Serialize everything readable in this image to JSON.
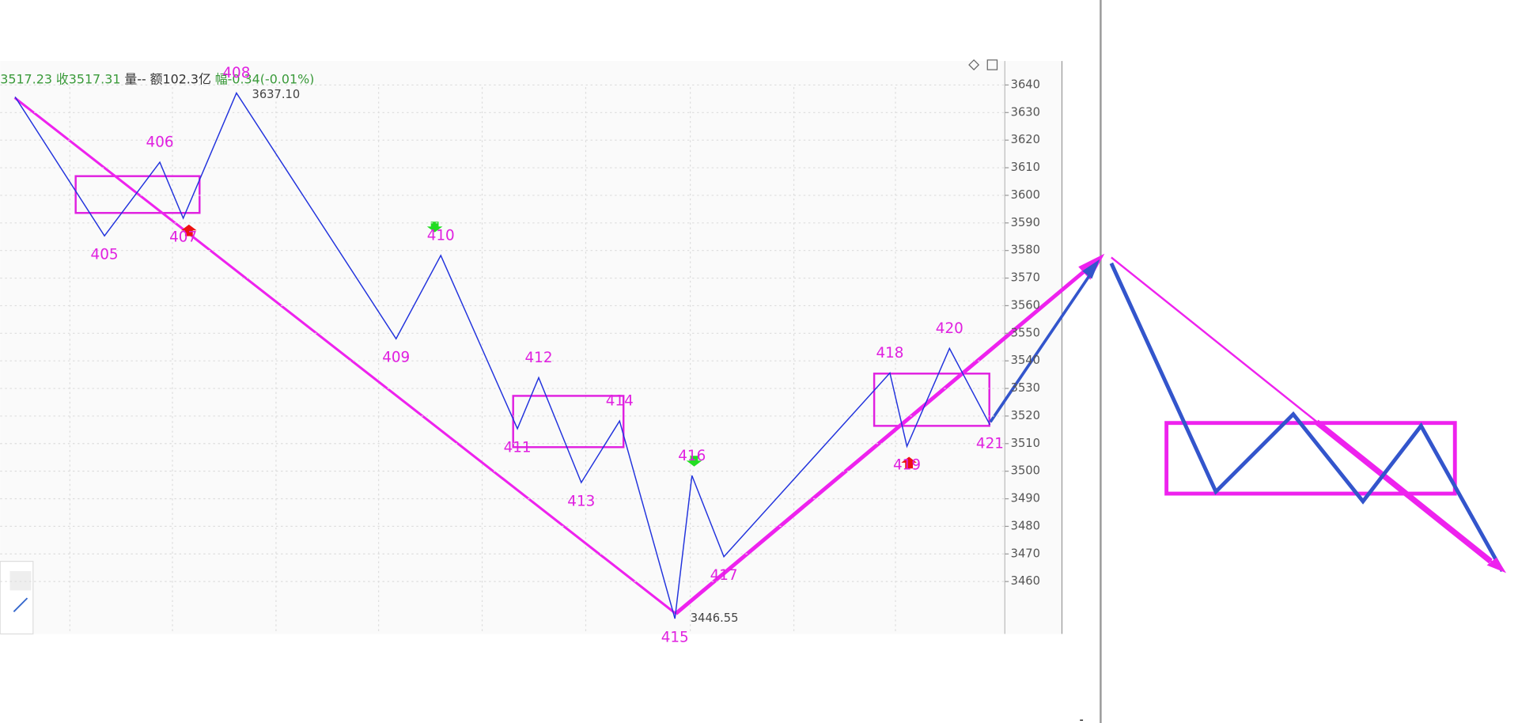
{
  "chart_data": {
    "type": "line",
    "header": [
      "3517.23",
      "收3517.31",
      "量--",
      "额102.3亿",
      "幅-0.34(-0.01%)"
    ],
    "x": [
      7,
      49,
      75,
      86,
      111,
      186,
      207,
      243,
      253,
      273,
      291,
      317,
      325,
      340,
      418,
      426,
      446,
      465
    ],
    "series": [
      {
        "color": "#2233dd",
        "values": [
          3635.7,
          3585.3,
          3612,
          3591.7,
          3637.1,
          3548,
          3578.2,
          3515.4,
          3533.9,
          3495.9,
          3518.2,
          3446.55,
          3498.4,
          3469,
          3535.6,
          3509,
          3544.5,
          3516.8
        ],
        "value_labels": [
          null,
          null,
          null,
          null,
          "3637.10",
          null,
          null,
          null,
          null,
          null,
          null,
          "3446.55",
          null,
          null,
          null,
          null,
          null,
          null
        ],
        "point_labels": [
          null,
          "405",
          "406",
          "407",
          "408",
          "409",
          "410",
          "411",
          "412",
          "413",
          "414",
          "415",
          "416",
          "417",
          "418",
          "419",
          "420",
          "421"
        ]
      }
    ],
    "xlim": [
      0,
      472
    ],
    "ylim": [
      3441,
      3648
    ],
    "yticks": [
      3460,
      3470,
      3480,
      3490,
      3500,
      3510,
      3520,
      3530,
      3540,
      3550,
      3560,
      3570,
      3580,
      3590,
      3600,
      3610,
      3620,
      3630,
      3640
    ],
    "grid": true
  }
}
